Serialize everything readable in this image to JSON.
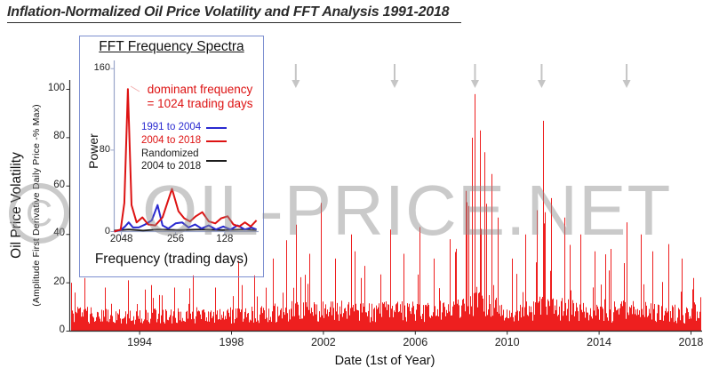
{
  "title": "Inflation-Normalized Oil Price Volatility and FFT Analysis 1991-2018",
  "watermark": {
    "symbol": "C",
    "text": "OIL-PRICE.NET"
  },
  "colors": {
    "series_red": "#ee1f1f",
    "fft_red": "#dd1212",
    "fft_blue": "#2a2ad0",
    "fft_black": "#1c1c1c",
    "arrow_gray": "#c5c5c5",
    "inset_border": "#7d8fd0",
    "inset_axis": "#9aa5c9",
    "main_axis": "#2b2b2b",
    "annotation_red": "#dd1212",
    "watermark_gray": "#8c8c8c"
  },
  "main_chart": {
    "ylabel": "Oil Price Volatility",
    "ylabel_sub": "(Amplitude  First Derivative Daily Price  -% Max)",
    "xlabel": "Date (1st of Year)"
  },
  "inset": {
    "title": "FFT Frequency Spectra",
    "ylabel": "Power",
    "xlabel": "Frequency (trading days)",
    "annotation_line1": "dominant frequency",
    "annotation_line2": "= 1024 trading days",
    "legend": [
      {
        "label": "1991 to 2004"
      },
      {
        "label": "2004 to 2018"
      },
      {
        "label": "Randomized\n2004 to 2018"
      }
    ]
  },
  "chart_data": [
    {
      "type": "line",
      "title": "Inflation-Normalized Oil Price Volatility 1991-2018",
      "xlabel": "Date (1st of Year)",
      "ylabel": "Oil Price Volatility (Amplitude First Derivative Daily Price -% Max)",
      "x_range": [
        1991,
        2018.4
      ],
      "ylim": [
        0,
        105
      ],
      "xticks": [
        1994,
        1998,
        2002,
        2006,
        2010,
        2014,
        2018
      ],
      "yticks": [
        0,
        20,
        40,
        60,
        80,
        100
      ],
      "series_color": "#ee1f1f",
      "event_arrow_years": [
        2000.8,
        2005.1,
        2008.6,
        2011.5,
        2015.2
      ],
      "envelope_points": [
        [
          1991.0,
          20,
          9
        ],
        [
          1991.6,
          22,
          9
        ],
        [
          1992.5,
          18,
          8
        ],
        [
          1993.5,
          21,
          8
        ],
        [
          1994.5,
          19,
          8
        ],
        [
          1995.5,
          18,
          8
        ],
        [
          1996.3,
          23,
          9
        ],
        [
          1997.3,
          18,
          8
        ],
        [
          1998.3,
          29,
          9
        ],
        [
          1999.0,
          23,
          9
        ],
        [
          1999.8,
          30,
          10
        ],
        [
          2000.8,
          44,
          11
        ],
        [
          2001.4,
          32,
          11
        ],
        [
          2001.9,
          53,
          11
        ],
        [
          2002.5,
          30,
          11
        ],
        [
          2003.2,
          40,
          11
        ],
        [
          2003.8,
          27,
          10
        ],
        [
          2004.9,
          42,
          11
        ],
        [
          2005.5,
          32,
          11
        ],
        [
          2006.2,
          43,
          11
        ],
        [
          2006.8,
          30,
          10
        ],
        [
          2007.5,
          38,
          11
        ],
        [
          2008.2,
          58,
          13
        ],
        [
          2008.45,
          80,
          15
        ],
        [
          2008.6,
          98,
          16
        ],
        [
          2008.8,
          83,
          16
        ],
        [
          2009.0,
          74,
          15
        ],
        [
          2009.3,
          65,
          14
        ],
        [
          2009.6,
          47,
          12
        ],
        [
          2010.2,
          30,
          11
        ],
        [
          2010.8,
          40,
          11
        ],
        [
          2011.3,
          50,
          12
        ],
        [
          2011.55,
          87,
          13
        ],
        [
          2011.9,
          55,
          12
        ],
        [
          2012.5,
          47,
          12
        ],
        [
          2013.2,
          40,
          11
        ],
        [
          2013.8,
          33,
          10
        ],
        [
          2014.5,
          34,
          10
        ],
        [
          2015.2,
          45,
          12
        ],
        [
          2015.8,
          40,
          11
        ],
        [
          2016.3,
          33,
          10
        ],
        [
          2017.0,
          36,
          10
        ],
        [
          2017.6,
          30,
          9
        ],
        [
          2018.1,
          22,
          8
        ],
        [
          2018.4,
          14,
          7
        ]
      ]
    },
    {
      "type": "line",
      "title": "FFT Frequency Spectra",
      "xlabel": "Frequency (trading days)",
      "ylabel": "Power",
      "ylim": [
        0,
        160
      ],
      "yticks": [
        0,
        80,
        160
      ],
      "xticks": [
        {
          "label": "2048",
          "pos": 0.05
        },
        {
          "label": "256",
          "pos": 0.425
        },
        {
          "label": "128",
          "pos": 0.765
        }
      ],
      "annotation": "dominant frequency = 1024 trading days",
      "dominant_peak": {
        "power": 140,
        "period_days": 1024
      },
      "series": [
        {
          "name": "1991 to 2004",
          "color": "#2a2ad0",
          "points": [
            [
              0,
              0
            ],
            [
              0.05,
              2
            ],
            [
              0.075,
              5
            ],
            [
              0.1,
              9
            ],
            [
              0.13,
              4
            ],
            [
              0.17,
              4
            ],
            [
              0.215,
              7
            ],
            [
              0.26,
              11
            ],
            [
              0.3,
              26
            ],
            [
              0.335,
              6
            ],
            [
              0.375,
              3
            ],
            [
              0.425,
              8
            ],
            [
              0.47,
              9
            ],
            [
              0.515,
              4
            ],
            [
              0.56,
              7
            ],
            [
              0.605,
              3
            ],
            [
              0.655,
              6
            ],
            [
              0.705,
              2
            ],
            [
              0.755,
              5
            ],
            [
              0.805,
              2
            ],
            [
              0.855,
              6
            ],
            [
              0.905,
              2
            ],
            [
              0.95,
              4
            ],
            [
              0.985,
              2
            ]
          ]
        },
        {
          "name": "2004 to 2018",
          "color": "#dd1212",
          "points": [
            [
              0,
              0
            ],
            [
              0.045,
              2
            ],
            [
              0.07,
              28
            ],
            [
              0.095,
              140
            ],
            [
              0.12,
              26
            ],
            [
              0.155,
              9
            ],
            [
              0.195,
              14
            ],
            [
              0.235,
              7
            ],
            [
              0.285,
              6
            ],
            [
              0.335,
              14
            ],
            [
              0.4,
              42
            ],
            [
              0.445,
              20
            ],
            [
              0.485,
              13
            ],
            [
              0.525,
              10
            ],
            [
              0.565,
              15
            ],
            [
              0.61,
              19
            ],
            [
              0.655,
              10
            ],
            [
              0.7,
              8
            ],
            [
              0.74,
              13
            ],
            [
              0.785,
              15
            ],
            [
              0.825,
              7
            ],
            [
              0.865,
              5
            ],
            [
              0.905,
              9
            ],
            [
              0.945,
              5
            ],
            [
              0.985,
              11
            ]
          ]
        },
        {
          "name": "Randomized 2004 to 2018",
          "color": "#1c1c1c",
          "points": [
            [
              0,
              1
            ],
            [
              0.1,
              2
            ],
            [
              0.2,
              1
            ],
            [
              0.3,
              2
            ],
            [
              0.45,
              1.5
            ],
            [
              0.6,
              2
            ],
            [
              0.75,
              1.5
            ],
            [
              0.9,
              2
            ],
            [
              0.985,
              1.5
            ]
          ]
        }
      ]
    }
  ]
}
